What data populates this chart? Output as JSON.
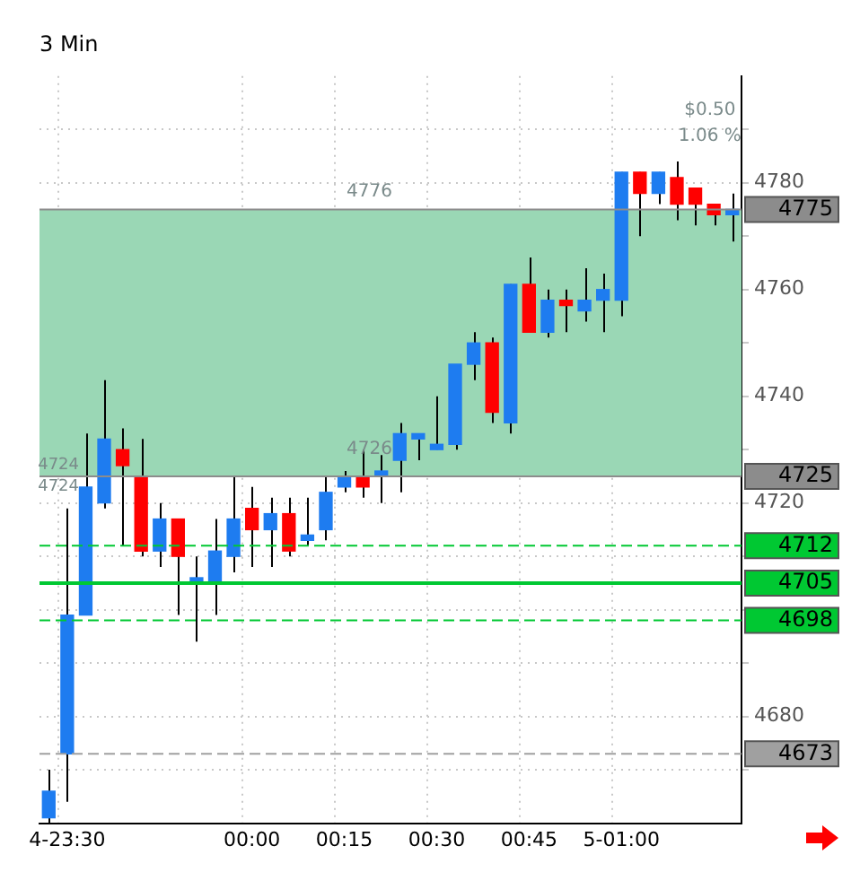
{
  "chart_data": {
    "type": "candlestick",
    "title": "3 Min",
    "categories": [
      null,
      "4-23:30",
      null,
      null,
      null,
      null,
      null,
      null,
      null,
      null,
      null,
      "00:00",
      null,
      null,
      null,
      null,
      "00:15",
      null,
      null,
      null,
      null,
      "00:30",
      null,
      null,
      null,
      null,
      "00:45",
      null,
      null,
      null,
      null,
      "5-01:00",
      null,
      null,
      null,
      null,
      null,
      null
    ],
    "ohlc": [
      [
        4661,
        4670,
        4660,
        4666
      ],
      [
        4673,
        4719,
        4664,
        4699
      ],
      [
        4699,
        4733,
        4699,
        4723
      ],
      [
        4720,
        4743,
        4719,
        4732
      ],
      [
        4730,
        4734,
        4712,
        4727
      ],
      [
        4725,
        4732,
        4710,
        4711
      ],
      [
        4711,
        4720,
        4708,
        4717
      ],
      [
        4717,
        4717,
        4699,
        4710
      ],
      [
        4705,
        4710,
        4694,
        4706
      ],
      [
        4705,
        4717,
        4699,
        4711
      ],
      [
        4710,
        4725,
        4707,
        4717
      ],
      [
        4719,
        4723,
        4708,
        4715
      ],
      [
        4715,
        4721,
        4708,
        4718
      ],
      [
        4718,
        4721,
        4710,
        4711
      ],
      [
        4713,
        4721,
        4712,
        4714
      ],
      [
        4715,
        4725,
        4713,
        4722
      ],
      [
        4723,
        4726,
        4722,
        4725
      ],
      [
        4725,
        4730,
        4721,
        4723
      ],
      [
        4725,
        4729,
        4720,
        4726
      ],
      [
        4728,
        4735,
        4722,
        4733
      ],
      [
        4732,
        4733,
        4728,
        4733
      ],
      [
        4730,
        4740,
        4730,
        4731
      ],
      [
        4731,
        4746,
        4730,
        4746
      ],
      [
        4746,
        4752,
        4743,
        4750
      ],
      [
        4750,
        4751,
        4735,
        4737
      ],
      [
        4735,
        4761,
        4733,
        4761
      ],
      [
        4761,
        4766,
        4752,
        4752
      ],
      [
        4752,
        4760,
        4751,
        4758
      ],
      [
        4758,
        4760,
        4752,
        4757
      ],
      [
        4756,
        4764,
        4754,
        4758
      ],
      [
        4758,
        4763,
        4752,
        4760
      ],
      [
        4758,
        4782,
        4755,
        4782
      ],
      [
        4782,
        4782,
        4770,
        4778
      ],
      [
        4778,
        4782,
        4776,
        4782
      ],
      [
        4781,
        4784,
        4773,
        4776
      ],
      [
        4779,
        4779,
        4772,
        4776
      ],
      [
        4776,
        4776,
        4772,
        4774
      ],
      [
        4774,
        4778,
        4769,
        4775
      ]
    ],
    "colors": [
      "#1e7cf0",
      "#1e7cf0",
      "#1e7cf0",
      "#1e7cf0",
      "#ff0000",
      "#ff0000",
      "#1e7cf0",
      "#ff0000",
      "#1e7cf0",
      "#1e7cf0",
      "#1e7cf0",
      "#ff0000",
      "#1e7cf0",
      "#ff0000",
      "#1e7cf0",
      "#1e7cf0",
      "#1e7cf0",
      "#ff0000",
      "#1e7cf0",
      "#1e7cf0",
      "#1e7cf0",
      "#1e7cf0",
      "#1e7cf0",
      "#1e7cf0",
      "#ff0000",
      "#1e7cf0",
      "#ff0000",
      "#1e7cf0",
      "#ff0000",
      "#1e7cf0",
      "#1e7cf0",
      "#1e7cf0",
      "#ff0000",
      "#1e7cf0",
      "#ff0000",
      "#ff0000",
      "#ff0000",
      "#1e7cf0"
    ],
    "ylim": [
      4660,
      4800
    ],
    "yticks": [
      {
        "value": 4670,
        "label": null
      },
      4680,
      {
        "value": 4690,
        "label": null
      },
      {
        "value": 4700,
        "label": null
      },
      {
        "value": 4710,
        "label": null
      },
      4720,
      {
        "value": 4730,
        "label": null
      },
      4740,
      {
        "value": 4750,
        "label": null
      },
      4760,
      {
        "value": 4770,
        "label": null
      },
      4780,
      {
        "value": 4790,
        "label": null
      }
    ],
    "grid": true,
    "bands": [
      {
        "axis": "y",
        "from": 4725,
        "to": 4775,
        "color": "#9ad7b5"
      }
    ],
    "ref_lines": [
      {
        "axis": "y",
        "value": 4775,
        "label": "4775",
        "color": "#8c8c8c",
        "line_style": "solid"
      },
      {
        "axis": "y",
        "value": 4725,
        "label": "4725",
        "color": "#8c8c8c",
        "line_style": "solid"
      },
      {
        "axis": "y",
        "value": 4712,
        "label": "4712",
        "color": "#00c832",
        "line_style": "dashed"
      },
      {
        "axis": "y",
        "value": 4705,
        "label": "4705",
        "color": "#00c832",
        "line_style": "solid"
      },
      {
        "axis": "y",
        "value": 4698,
        "label": "4698",
        "color": "#00c832",
        "line_style": "dashed"
      },
      {
        "axis": "y",
        "value": 4673,
        "label": "4673",
        "color": "#a0a0a0",
        "line_style": "dashed"
      }
    ],
    "annotations": [
      {
        "text": "4776",
        "y": 4776
      },
      {
        "text": "4726",
        "y": 4726
      },
      {
        "text": "4724",
        "y": 4724
      },
      {
        "text": "4724",
        "y": 4724
      },
      "$0.50",
      "1.06 %"
    ]
  }
}
